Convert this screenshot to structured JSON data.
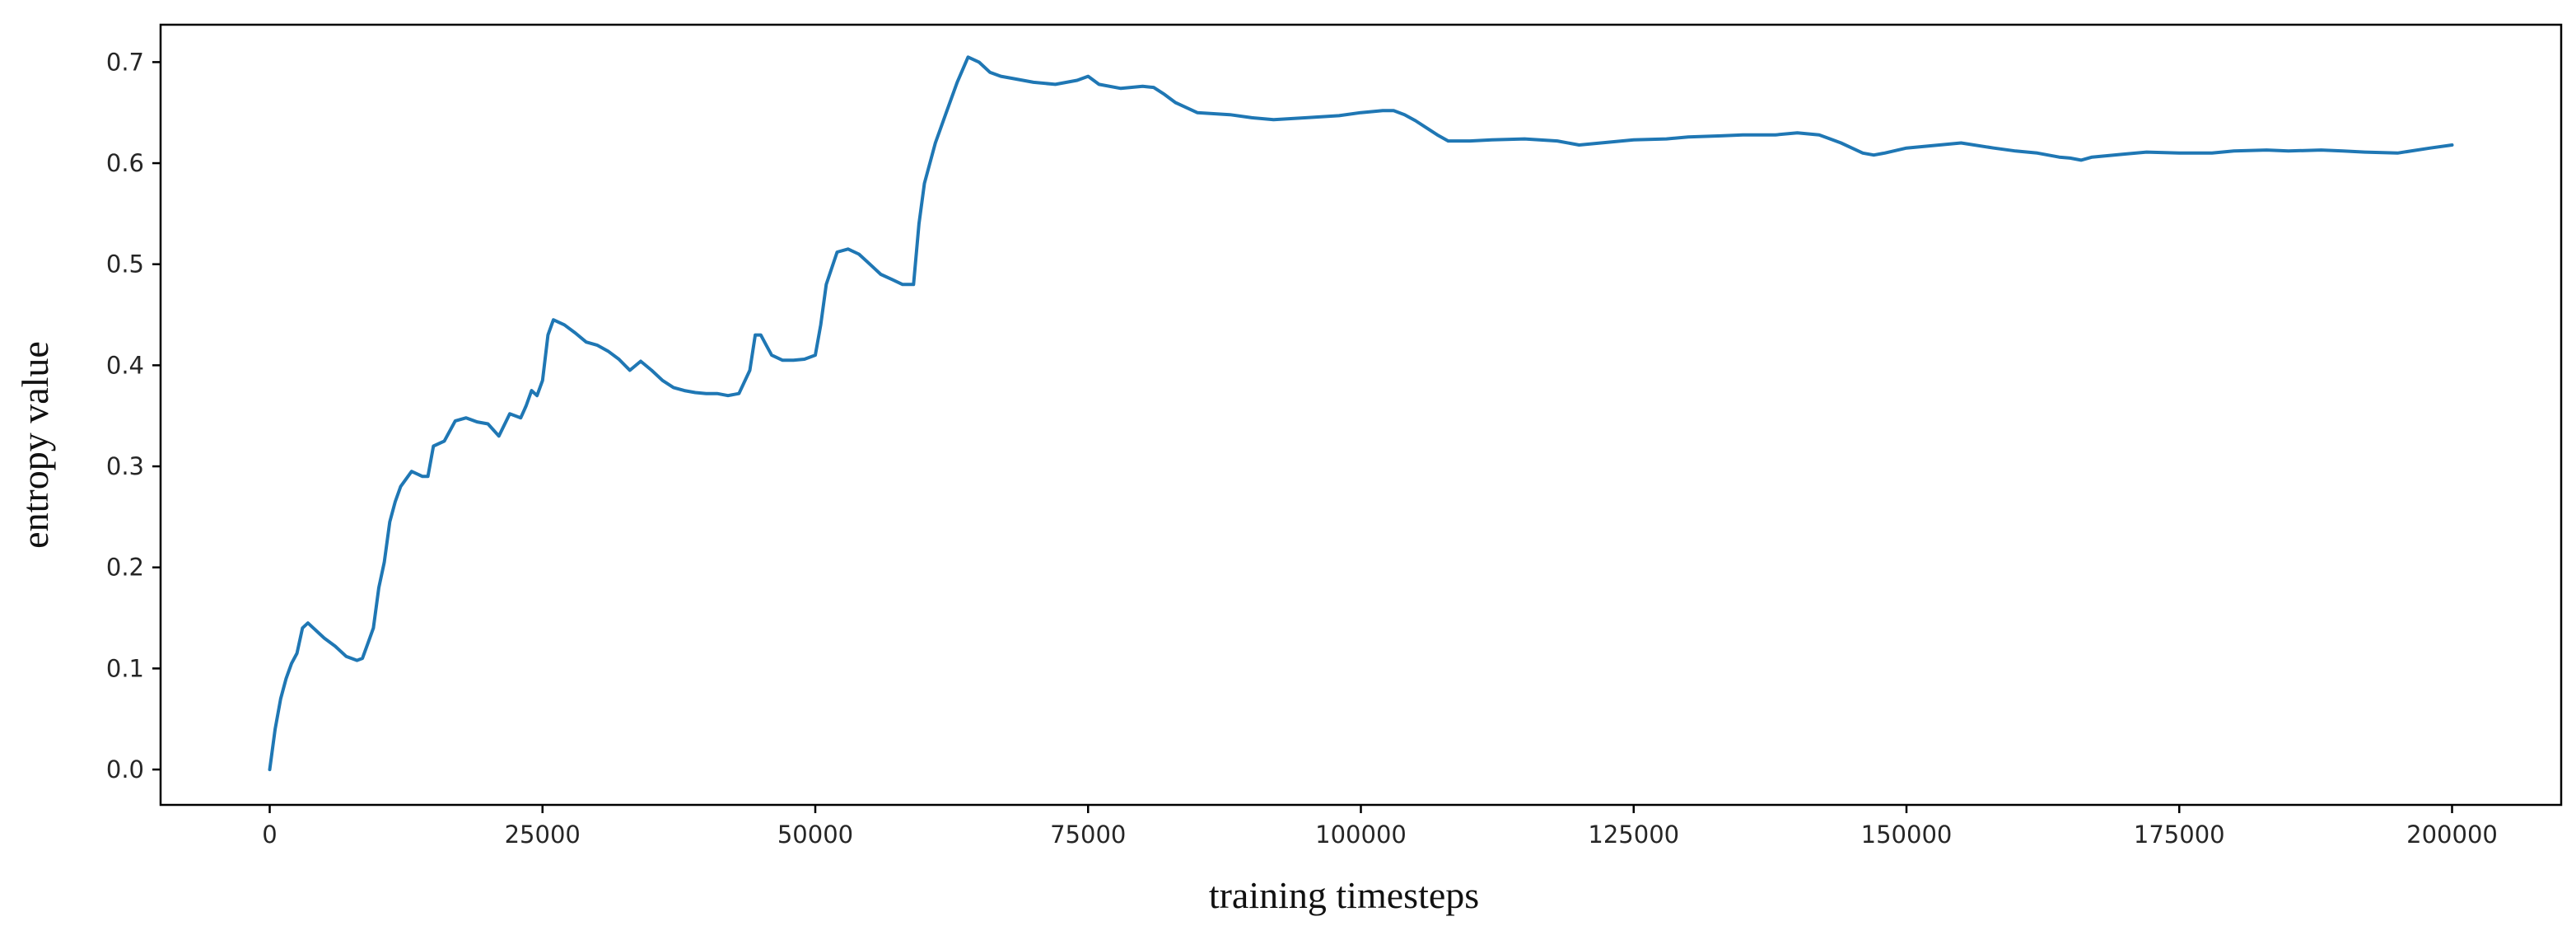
{
  "chart_data": {
    "type": "line",
    "title": "",
    "xlabel": "training timesteps",
    "ylabel": "entropy value",
    "xlim": [
      -10000,
      210000
    ],
    "ylim": [
      -0.035,
      0.737
    ],
    "xticks": [
      0,
      25000,
      50000,
      75000,
      100000,
      125000,
      150000,
      175000,
      200000
    ],
    "xtick_labels": [
      "0",
      "25000",
      "50000",
      "75000",
      "100000",
      "125000",
      "150000",
      "175000",
      "200000"
    ],
    "yticks": [
      0.0,
      0.1,
      0.2,
      0.3,
      0.4,
      0.5,
      0.6,
      0.7
    ],
    "ytick_labels": [
      "0.0",
      "0.1",
      "0.2",
      "0.3",
      "0.4",
      "0.5",
      "0.6",
      "0.7"
    ],
    "grid": false,
    "legend": "none",
    "color": "#1f77b4",
    "series": [
      {
        "x": [
          0,
          500,
          1000,
          1500,
          2000,
          2500,
          3000,
          3500,
          4000,
          5000,
          6000,
          7000,
          8000,
          8500,
          9000,
          9500,
          10000,
          10500,
          11000,
          11500,
          12000,
          13000,
          14000,
          14500,
          15000,
          16000,
          17000,
          18000,
          19000,
          20000,
          21000,
          22000,
          23000,
          23500,
          24000,
          24500,
          25000,
          25500,
          26000,
          27000,
          28000,
          29000,
          30000,
          31000,
          32000,
          33000,
          34000,
          35000,
          36000,
          37000,
          38000,
          39000,
          40000,
          41000,
          42000,
          43000,
          44000,
          44500,
          45000,
          45500,
          46000,
          47000,
          48000,
          49000,
          50000,
          50500,
          51000,
          52000,
          53000,
          54000,
          55000,
          56000,
          57000,
          58000,
          59000,
          59500,
          60000,
          61000,
          62000,
          63000,
          64000,
          65000,
          66000,
          67000,
          68000,
          70000,
          72000,
          74000,
          75000,
          76000,
          78000,
          80000,
          81000,
          82000,
          83000,
          85000,
          88000,
          90000,
          92000,
          95000,
          98000,
          100000,
          102000,
          103000,
          104000,
          105000,
          106000,
          107000,
          108000,
          110000,
          112000,
          115000,
          118000,
          120000,
          122000,
          125000,
          128000,
          130000,
          133000,
          135000,
          138000,
          140000,
          142000,
          143000,
          144000,
          145000,
          146000,
          147000,
          148000,
          150000,
          152000,
          155000,
          158000,
          160000,
          162000,
          164000,
          165000,
          166000,
          167000,
          168000,
          170000,
          172000,
          175000,
          178000,
          180000,
          183000,
          185000,
          188000,
          190000,
          192000,
          195000,
          198000,
          200000
        ],
        "y": [
          0.0,
          0.04,
          0.07,
          0.09,
          0.105,
          0.115,
          0.14,
          0.145,
          0.14,
          0.13,
          0.122,
          0.112,
          0.108,
          0.11,
          0.125,
          0.14,
          0.18,
          0.205,
          0.245,
          0.265,
          0.28,
          0.295,
          0.29,
          0.29,
          0.32,
          0.325,
          0.345,
          0.348,
          0.344,
          0.342,
          0.33,
          0.352,
          0.348,
          0.36,
          0.375,
          0.37,
          0.385,
          0.43,
          0.445,
          0.44,
          0.432,
          0.423,
          0.42,
          0.414,
          0.406,
          0.395,
          0.404,
          0.395,
          0.385,
          0.378,
          0.375,
          0.373,
          0.372,
          0.372,
          0.37,
          0.372,
          0.395,
          0.43,
          0.43,
          0.42,
          0.41,
          0.405,
          0.405,
          0.406,
          0.41,
          0.44,
          0.48,
          0.512,
          0.515,
          0.51,
          0.5,
          0.49,
          0.485,
          0.48,
          0.48,
          0.54,
          0.58,
          0.62,
          0.65,
          0.68,
          0.705,
          0.7,
          0.69,
          0.686,
          0.684,
          0.68,
          0.678,
          0.682,
          0.686,
          0.678,
          0.674,
          0.676,
          0.675,
          0.668,
          0.66,
          0.65,
          0.648,
          0.645,
          0.643,
          0.645,
          0.647,
          0.65,
          0.652,
          0.652,
          0.648,
          0.642,
          0.635,
          0.628,
          0.622,
          0.622,
          0.623,
          0.624,
          0.622,
          0.618,
          0.62,
          0.623,
          0.624,
          0.626,
          0.627,
          0.628,
          0.628,
          0.63,
          0.628,
          0.624,
          0.62,
          0.615,
          0.61,
          0.608,
          0.61,
          0.615,
          0.617,
          0.62,
          0.615,
          0.612,
          0.61,
          0.606,
          0.605,
          0.603,
          0.606,
          0.607,
          0.609,
          0.611,
          0.61,
          0.61,
          0.612,
          0.613,
          0.612,
          0.613,
          0.612,
          0.611,
          0.61,
          0.615,
          0.618
        ]
      }
    ]
  }
}
